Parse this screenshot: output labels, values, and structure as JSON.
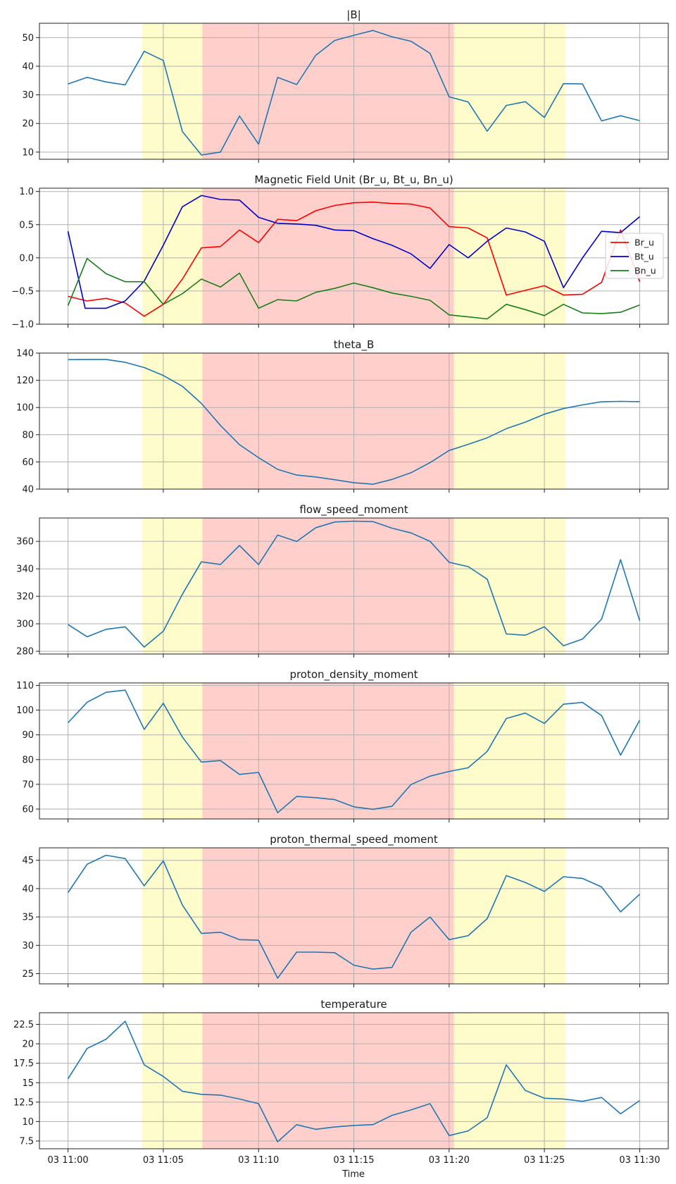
{
  "colors": {
    "default_line": "#1f77b4",
    "yellow_band": "#fffccc",
    "red_band": "#ffcfcb",
    "grid": "#b0b0b0",
    "br": "#ff0000",
    "bt": "#0000cc",
    "bn": "#1a7f1a"
  },
  "x_axis": {
    "label": "Time",
    "range": [
      -1.5,
      31.5
    ],
    "ticks": [
      {
        "value": 0,
        "label": "03 11:00"
      },
      {
        "value": 5,
        "label": "03 11:05"
      },
      {
        "value": 10,
        "label": "03 11:10"
      },
      {
        "value": 15,
        "label": "03 11:15"
      },
      {
        "value": 20,
        "label": "03 11:20"
      },
      {
        "value": 25,
        "label": "03 11:25"
      },
      {
        "value": 30,
        "label": "03 11:30"
      }
    ]
  },
  "bands": [
    {
      "from": 3.9,
      "to": 7.05,
      "color": "yellow"
    },
    {
      "from": 20.25,
      "to": 26.1,
      "color": "yellow"
    },
    {
      "from": 7.05,
      "to": 20.25,
      "color": "red"
    }
  ],
  "chart_data": [
    {
      "type": "line",
      "title": "|B|",
      "x_unit": "minutes after 03 11:00",
      "ylim": [
        7.5,
        55
      ],
      "yticks": [
        10,
        20,
        30,
        40,
        50
      ],
      "series": [
        {
          "name": "|B|",
          "color": "default_line",
          "x": [
            0,
            1,
            2,
            3,
            4,
            5,
            6,
            7,
            8,
            9,
            10,
            11,
            12,
            13,
            14,
            15,
            16,
            17,
            18,
            19,
            20,
            21,
            22,
            23,
            24,
            25,
            26,
            27,
            28,
            29,
            30
          ],
          "values": [
            33.8,
            36.1,
            34.5,
            33.5,
            45.2,
            42.0,
            17.2,
            9.0,
            10.0,
            22.6,
            12.8,
            36.1,
            33.6,
            43.8,
            49.0,
            50.8,
            52.5,
            50.3,
            48.7,
            44.5,
            29.3,
            27.5,
            17.3,
            26.3,
            27.6,
            22.1,
            33.9,
            33.8,
            20.9,
            22.7,
            21.0
          ]
        }
      ]
    },
    {
      "type": "line",
      "title": "Magnetic Field Unit (Br_u, Bt_u, Bn_u)",
      "x_unit": "minutes after 03 11:00",
      "ylim": [
        -1.0,
        1.05
      ],
      "yticks": [
        -1.0,
        -0.5,
        0.0,
        0.5,
        1.0
      ],
      "ytick_labels": [
        "−1.0",
        "−0.5",
        "0.0",
        "0.5",
        "1.0"
      ],
      "legend": "right",
      "series": [
        {
          "name": "Br_u",
          "color": "br",
          "x": [
            0,
            1,
            2,
            3,
            4,
            5,
            6,
            7,
            8,
            9,
            10,
            11,
            12,
            13,
            14,
            15,
            16,
            17,
            18,
            19,
            20,
            21,
            22,
            23,
            24,
            25,
            26,
            27,
            28,
            29,
            30
          ],
          "values": [
            -0.58,
            -0.65,
            -0.61,
            -0.68,
            -0.88,
            -0.7,
            -0.32,
            0.15,
            0.17,
            0.42,
            0.23,
            0.58,
            0.56,
            0.71,
            0.79,
            0.83,
            0.84,
            0.82,
            0.81,
            0.75,
            0.47,
            0.45,
            0.3,
            -0.56,
            -0.49,
            -0.42,
            -0.56,
            -0.55,
            -0.37,
            0.42,
            -0.36
          ]
        },
        {
          "name": "Bt_u",
          "color": "bt",
          "x": [
            0,
            0.9,
            2,
            3,
            4,
            5,
            6,
            7,
            8,
            9,
            10,
            11,
            12,
            13,
            14,
            15,
            16,
            17,
            18,
            19,
            20,
            21,
            22,
            23,
            24,
            25,
            26,
            27,
            28,
            29,
            30
          ],
          "values": [
            0.4,
            -0.76,
            -0.76,
            -0.65,
            -0.35,
            0.19,
            0.77,
            0.94,
            0.88,
            0.87,
            0.61,
            0.52,
            0.51,
            0.49,
            0.42,
            0.41,
            0.29,
            0.19,
            0.06,
            -0.16,
            0.2,
            0.0,
            0.25,
            0.45,
            0.39,
            0.25,
            -0.45,
            0.0,
            0.4,
            0.38,
            0.62
          ]
        },
        {
          "name": "Bn_u",
          "color": "bn",
          "x": [
            0,
            1,
            2,
            3,
            4,
            5,
            6,
            7,
            8,
            9,
            10,
            11,
            12,
            13,
            14,
            15,
            16,
            17,
            18,
            19,
            20,
            21,
            22,
            23,
            24,
            25,
            26,
            27,
            28,
            29,
            30
          ],
          "values": [
            -0.72,
            -0.01,
            -0.24,
            -0.36,
            -0.36,
            -0.7,
            -0.54,
            -0.32,
            -0.44,
            -0.23,
            -0.76,
            -0.63,
            -0.65,
            -0.52,
            -0.46,
            -0.38,
            -0.45,
            -0.53,
            -0.58,
            -0.64,
            -0.86,
            -0.89,
            -0.92,
            -0.7,
            -0.78,
            -0.87,
            -0.7,
            -0.83,
            -0.84,
            -0.82,
            -0.71
          ]
        }
      ]
    },
    {
      "type": "line",
      "title": "theta_B",
      "x_unit": "minutes after 03 11:00",
      "ylim": [
        40,
        140
      ],
      "yticks": [
        40,
        60,
        80,
        100,
        120,
        140
      ],
      "series": [
        {
          "name": "theta_B",
          "color": "default_line",
          "x": [
            0,
            1,
            2,
            3,
            4,
            5,
            6,
            7,
            8,
            9,
            10,
            11,
            12,
            13,
            14,
            15,
            16,
            17,
            18,
            19,
            20,
            21,
            22,
            23,
            24,
            25,
            26,
            27,
            28,
            29,
            30
          ],
          "values": [
            135.2,
            135.3,
            135.3,
            133.2,
            129.4,
            123.5,
            115.6,
            103.0,
            86.8,
            72.7,
            63.1,
            54.5,
            50.3,
            48.9,
            46.9,
            44.7,
            43.6,
            47.1,
            52.0,
            59.5,
            68.4,
            72.9,
            77.7,
            84.4,
            89.2,
            95.1,
            99.2,
            101.9,
            104.2,
            104.5,
            104.3
          ]
        }
      ]
    },
    {
      "type": "line",
      "title": "flow_speed_moment",
      "x_unit": "minutes after 03 11:00",
      "ylim": [
        278,
        377
      ],
      "yticks": [
        280,
        300,
        320,
        340,
        360
      ],
      "series": [
        {
          "name": "flow_speed_moment",
          "color": "default_line",
          "x": [
            0,
            1,
            2,
            3,
            4,
            5,
            6,
            7,
            8,
            9,
            10,
            11,
            12,
            13,
            14,
            15,
            16,
            17,
            18,
            19,
            20,
            21,
            22,
            23,
            24,
            25,
            26,
            27,
            28,
            29,
            30
          ],
          "values": [
            299.5,
            290.5,
            296.0,
            297.8,
            283.1,
            294.6,
            321.5,
            345.1,
            343.2,
            357.0,
            343.1,
            364.6,
            359.9,
            369.9,
            374.1,
            374.7,
            374.4,
            369.6,
            366.1,
            360.0,
            344.8,
            341.6,
            332.5,
            292.6,
            291.7,
            297.8,
            284.0,
            288.9,
            303.4,
            346.7,
            302.3
          ]
        }
      ]
    },
    {
      "type": "line",
      "title": "proton_density_moment",
      "x_unit": "minutes after 03 11:00",
      "ylim": [
        56,
        111
      ],
      "yticks": [
        60,
        70,
        80,
        90,
        100,
        110
      ],
      "series": [
        {
          "name": "proton_density_moment",
          "color": "default_line",
          "x": [
            0,
            1,
            2,
            3,
            4,
            5,
            6,
            7,
            8,
            9,
            10,
            11,
            12,
            13,
            14,
            15,
            16,
            17,
            18,
            19,
            20,
            21,
            22,
            23,
            24,
            25,
            26,
            27,
            28,
            29,
            30
          ],
          "values": [
            94.9,
            103.2,
            107.2,
            108.1,
            92.2,
            102.8,
            89.1,
            79.0,
            79.6,
            74.0,
            74.8,
            58.5,
            65.1,
            64.6,
            63.8,
            60.9,
            59.9,
            61.1,
            69.9,
            73.3,
            75.2,
            76.7,
            83.3,
            96.6,
            98.8,
            94.6,
            102.4,
            103.1,
            97.8,
            81.8,
            95.9
          ]
        }
      ]
    },
    {
      "type": "line",
      "title": "proton_thermal_speed_moment",
      "x_unit": "minutes after 03 11:00",
      "ylim": [
        23.2,
        47.2
      ],
      "yticks": [
        25,
        30,
        35,
        40,
        45
      ],
      "series": [
        {
          "name": "proton_thermal_speed_moment",
          "color": "default_line",
          "x": [
            0,
            1,
            2,
            3,
            4,
            5,
            6,
            7,
            8,
            9,
            10,
            11,
            12,
            13,
            14,
            15,
            16,
            17,
            18,
            19,
            20,
            21,
            22,
            23,
            24,
            25,
            26,
            27,
            28,
            29,
            30
          ],
          "values": [
            39.3,
            44.3,
            45.9,
            45.3,
            40.5,
            44.9,
            37.1,
            32.1,
            32.3,
            31.0,
            30.9,
            24.2,
            28.8,
            28.8,
            28.7,
            26.5,
            25.8,
            26.1,
            32.3,
            35.0,
            31.0,
            31.7,
            34.7,
            42.3,
            41.1,
            39.5,
            42.1,
            41.8,
            40.3,
            35.9,
            39.0
          ]
        }
      ]
    },
    {
      "type": "line",
      "title": "temperature",
      "x_unit": "minutes after 03 11:00",
      "ylim": [
        6.5,
        24.0
      ],
      "yticks": [
        7.5,
        10.0,
        12.5,
        15.0,
        17.5,
        20.0,
        22.5
      ],
      "series": [
        {
          "name": "temperature",
          "color": "default_line",
          "x": [
            0,
            1,
            2,
            3,
            4,
            5,
            6,
            7,
            8,
            9,
            10,
            11,
            12,
            13,
            14,
            15,
            16,
            17,
            18,
            19,
            20,
            21,
            22,
            23,
            24,
            25,
            26,
            27,
            28,
            29,
            30
          ],
          "values": [
            15.5,
            19.4,
            20.6,
            22.9,
            17.3,
            15.8,
            13.9,
            13.5,
            13.4,
            12.9,
            12.3,
            7.4,
            9.6,
            9.0,
            9.3,
            9.5,
            9.6,
            10.8,
            11.5,
            12.3,
            8.2,
            8.8,
            10.5,
            17.3,
            14.0,
            13.0,
            12.9,
            12.6,
            13.1,
            11.0,
            12.7
          ]
        }
      ]
    }
  ]
}
